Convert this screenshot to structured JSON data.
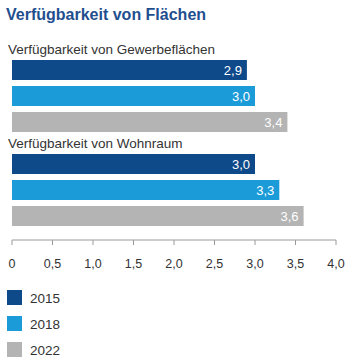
{
  "chart_data": {
    "type": "bar",
    "orientation": "horizontal",
    "title": "Verfügbarkeit von Flächen",
    "categories": [
      "Verfügbarkeit von Gewerbeflächen",
      "Verfügbarkeit von Wohnraum"
    ],
    "series": [
      {
        "name": "2015",
        "color": "#0e4a8a",
        "values": [
          2.9,
          3.0
        ],
        "value_labels": [
          "2,9",
          "3,0"
        ]
      },
      {
        "name": "2018",
        "color": "#1b9bd7",
        "values": [
          3.0,
          3.3
        ],
        "value_labels": [
          "3,0",
          "3,3"
        ]
      },
      {
        "name": "2022",
        "color": "#b4b4b4",
        "values": [
          3.4,
          3.6
        ],
        "value_labels": [
          "3,4",
          "3,6"
        ]
      }
    ],
    "xlim": [
      0,
      4
    ],
    "xticks": [
      0,
      {
        "value": 0.5,
        "label": "0,5"
      },
      {
        "value": 1,
        "label": "1,0"
      },
      {
        "value": 1.5,
        "label": "1,5"
      },
      {
        "value": 2,
        "label": "2,0"
      },
      {
        "value": 2.5,
        "label": "2,5"
      },
      {
        "value": 3,
        "label": "3,0"
      },
      {
        "value": 3.5,
        "label": "3,5"
      },
      {
        "value": 4,
        "label": "4,0"
      }
    ],
    "grid": false,
    "data_labels": true,
    "legend": "bottom-left"
  }
}
